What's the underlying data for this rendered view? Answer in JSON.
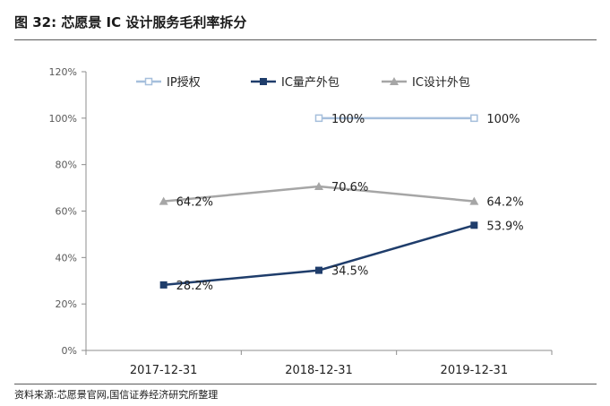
{
  "header": {
    "title": "图 32:  芯愿景 IC 设计服务毛利率拆分"
  },
  "footer": {
    "source": "资料来源:芯愿景官网,国信证券经济研究所整理"
  },
  "colors": {
    "ip": "#a6bfdc",
    "mass": "#1f3d6b",
    "design": "#a6a6a6",
    "axis": "#8c8c8c"
  },
  "chart_data": {
    "type": "line",
    "title": "",
    "xlabel": "",
    "ylabel": "",
    "categories": [
      "2017-12-31",
      "2018-12-31",
      "2019-12-31"
    ],
    "ylim": [
      0,
      120
    ],
    "yticks": [
      "0%",
      "20%",
      "40%",
      "60%",
      "80%",
      "100%",
      "120%"
    ],
    "legend_position": "top",
    "series": [
      {
        "name": "IP授权",
        "color_key": "ip",
        "marker": "square-open",
        "values": [
          null,
          100,
          100
        ],
        "labels": [
          "",
          "100%",
          "100%"
        ]
      },
      {
        "name": "IC量产外包",
        "color_key": "mass",
        "marker": "square",
        "values": [
          28.2,
          34.5,
          53.9
        ],
        "labels": [
          "28.2%",
          "34.5%",
          "53.9%"
        ]
      },
      {
        "name": "IC设计外包",
        "color_key": "design",
        "marker": "triangle",
        "values": [
          64.2,
          70.6,
          64.2
        ],
        "labels": [
          "64.2%",
          "70.6%",
          "64.2%"
        ]
      }
    ]
  }
}
